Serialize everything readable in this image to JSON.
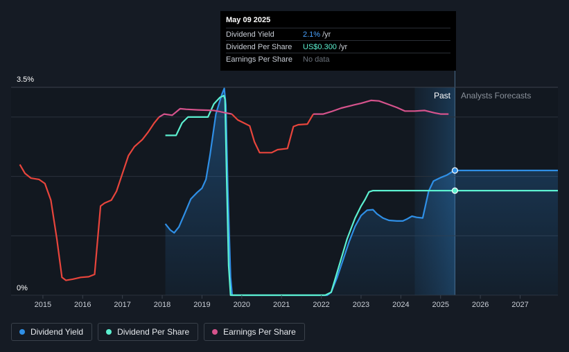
{
  "colors": {
    "background": "#151b24",
    "dividend_yield": "#2f8fe6",
    "dividend_per_share": "#5cf0d0",
    "earnings_per_share": "#d6538c",
    "eps_red": "#e8453c",
    "grid": "#2b323c"
  },
  "tooltip": {
    "date": "May 09 2025",
    "rows": [
      {
        "name": "Dividend Yield",
        "value": "2.1%",
        "unit": "/yr"
      },
      {
        "name": "Dividend Per Share",
        "value": "US$0.300",
        "unit": "/yr"
      },
      {
        "name": "Earnings Per Share",
        "value": "No data",
        "unit": ""
      }
    ]
  },
  "regions": {
    "past_label": "Past",
    "forecast_label": "Analysts Forecasts"
  },
  "legend": [
    {
      "label": "Dividend Yield",
      "color": "#2f8fe6"
    },
    {
      "label": "Dividend Per Share",
      "color": "#5cf0d0"
    },
    {
      "label": "Earnings Per Share",
      "color": "#d6538c"
    }
  ],
  "chart_data": {
    "type": "line",
    "y_axis_labels": [
      "3.5%",
      "0%"
    ],
    "ylim": [
      0,
      3.5
    ],
    "xlim": [
      2014.2,
      2027.95
    ],
    "x_ticks": [
      2015,
      2016,
      2017,
      2018,
      2019,
      2020,
      2021,
      2022,
      2023,
      2024,
      2025,
      2026,
      2027
    ],
    "x_tick_labels": [
      "2015",
      "2016",
      "2017",
      "2018",
      "2019",
      "2020",
      "2021",
      "2022",
      "2023",
      "2024",
      "2025",
      "2026",
      "2027"
    ],
    "past_end": 2025.36,
    "forecast_shade_start": 2024.35,
    "series": [
      {
        "name": "Dividend Yield",
        "key": "dividend_yield",
        "area": true,
        "points": [
          [
            2018.08,
            1.2
          ],
          [
            2018.2,
            1.1
          ],
          [
            2018.3,
            1.05
          ],
          [
            2018.42,
            1.15
          ],
          [
            2018.55,
            1.35
          ],
          [
            2018.72,
            1.62
          ],
          [
            2018.88,
            1.73
          ],
          [
            2019.0,
            1.8
          ],
          [
            2019.1,
            1.95
          ],
          [
            2019.2,
            2.35
          ],
          [
            2019.35,
            3.05
          ],
          [
            2019.5,
            3.38
          ],
          [
            2019.56,
            3.48
          ],
          [
            2019.6,
            3.2
          ],
          [
            2019.65,
            1.8
          ],
          [
            2019.72,
            0.3
          ],
          [
            2019.76,
            0.0
          ],
          [
            2022.15,
            0.0
          ],
          [
            2022.25,
            0.05
          ],
          [
            2022.4,
            0.3
          ],
          [
            2022.55,
            0.6
          ],
          [
            2022.7,
            0.9
          ],
          [
            2022.85,
            1.16
          ],
          [
            2023.0,
            1.34
          ],
          [
            2023.15,
            1.43
          ],
          [
            2023.3,
            1.44
          ],
          [
            2023.4,
            1.37
          ],
          [
            2023.55,
            1.3
          ],
          [
            2023.7,
            1.26
          ],
          [
            2023.9,
            1.25
          ],
          [
            2024.05,
            1.25
          ],
          [
            2024.15,
            1.28
          ],
          [
            2024.28,
            1.33
          ],
          [
            2024.4,
            1.31
          ],
          [
            2024.55,
            1.3
          ],
          [
            2024.7,
            1.75
          ],
          [
            2024.82,
            1.92
          ],
          [
            2025.0,
            1.98
          ],
          [
            2025.15,
            2.02
          ],
          [
            2025.3,
            2.08
          ],
          [
            2025.36,
            2.1
          ],
          [
            2027.95,
            2.1
          ]
        ]
      },
      {
        "name": "Dividend Per Share",
        "key": "dividend_per_share",
        "area": false,
        "points": [
          [
            2018.08,
            2.69
          ],
          [
            2018.35,
            2.69
          ],
          [
            2018.5,
            2.9
          ],
          [
            2018.65,
            3.0
          ],
          [
            2018.9,
            3.0
          ],
          [
            2019.15,
            3.0
          ],
          [
            2019.3,
            3.22
          ],
          [
            2019.45,
            3.33
          ],
          [
            2019.55,
            3.36
          ],
          [
            2019.58,
            3.3
          ],
          [
            2019.62,
            2.0
          ],
          [
            2019.67,
            0.5
          ],
          [
            2019.72,
            0.0
          ],
          [
            2022.1,
            0.0
          ],
          [
            2022.25,
            0.05
          ],
          [
            2022.45,
            0.5
          ],
          [
            2022.65,
            0.95
          ],
          [
            2022.85,
            1.3
          ],
          [
            2023.0,
            1.5
          ],
          [
            2023.1,
            1.61
          ],
          [
            2023.2,
            1.74
          ],
          [
            2023.3,
            1.76
          ],
          [
            2024.0,
            1.76
          ],
          [
            2025.36,
            1.76
          ],
          [
            2027.95,
            1.76
          ]
        ]
      },
      {
        "name": "Earnings Per Share",
        "key": "earnings_per_share",
        "area": false,
        "segments": [
          {
            "color": "eps_red",
            "points": [
              [
                2014.42,
                2.2
              ],
              [
                2014.55,
                2.05
              ],
              [
                2014.7,
                1.97
              ],
              [
                2014.9,
                1.95
              ],
              [
                2015.05,
                1.88
              ],
              [
                2015.2,
                1.6
              ],
              [
                2015.35,
                0.95
              ],
              [
                2015.48,
                0.3
              ],
              [
                2015.58,
                0.25
              ],
              [
                2015.75,
                0.27
              ],
              [
                2015.95,
                0.3
              ],
              [
                2016.15,
                0.31
              ],
              [
                2016.3,
                0.35
              ],
              [
                2016.45,
                1.5
              ],
              [
                2016.55,
                1.55
              ],
              [
                2016.72,
                1.6
              ],
              [
                2016.85,
                1.75
              ],
              [
                2017.0,
                2.05
              ],
              [
                2017.15,
                2.35
              ],
              [
                2017.3,
                2.5
              ],
              [
                2017.5,
                2.62
              ],
              [
                2017.65,
                2.75
              ],
              [
                2017.8,
                2.9
              ],
              [
                2017.92,
                3.0
              ]
            ]
          },
          {
            "color": "earnings_per_share",
            "points": [
              [
                2017.92,
                3.0
              ],
              [
                2018.05,
                3.05
              ],
              [
                2018.25,
                3.03
              ],
              [
                2018.45,
                3.14
              ],
              [
                2018.6,
                3.13
              ],
              [
                2018.9,
                3.12
              ],
              [
                2019.3,
                3.11
              ],
              [
                2019.45,
                3.09
              ],
              [
                2019.6,
                3.07
              ],
              [
                2019.75,
                3.05
              ]
            ]
          },
          {
            "color": "eps_red",
            "points": [
              [
                2019.75,
                3.05
              ],
              [
                2019.9,
                2.95
              ],
              [
                2020.05,
                2.9
              ],
              [
                2020.2,
                2.85
              ],
              [
                2020.32,
                2.58
              ],
              [
                2020.45,
                2.4
              ],
              [
                2020.75,
                2.4
              ],
              [
                2020.9,
                2.45
              ],
              [
                2021.15,
                2.47
              ],
              [
                2021.3,
                2.84
              ],
              [
                2021.42,
                2.87
              ],
              [
                2021.65,
                2.88
              ],
              [
                2021.8,
                3.05
              ]
            ]
          },
          {
            "color": "earnings_per_share",
            "points": [
              [
                2021.8,
                3.05
              ],
              [
                2022.05,
                3.05
              ],
              [
                2022.25,
                3.09
              ],
              [
                2022.5,
                3.15
              ],
              [
                2022.8,
                3.2
              ],
              [
                2023.0,
                3.23
              ],
              [
                2023.25,
                3.28
              ],
              [
                2023.45,
                3.27
              ],
              [
                2023.7,
                3.21
              ],
              [
                2023.9,
                3.16
              ],
              [
                2024.1,
                3.1
              ],
              [
                2024.35,
                3.1
              ],
              [
                2024.6,
                3.11
              ],
              [
                2024.85,
                3.07
              ],
              [
                2025.0,
                3.05
              ],
              [
                2025.2,
                3.05
              ]
            ]
          }
        ]
      }
    ],
    "markers": [
      {
        "series": "dividend_yield",
        "x": 2025.36,
        "y": 2.1
      },
      {
        "series": "dividend_per_share",
        "x": 2025.36,
        "y": 1.76
      }
    ]
  }
}
